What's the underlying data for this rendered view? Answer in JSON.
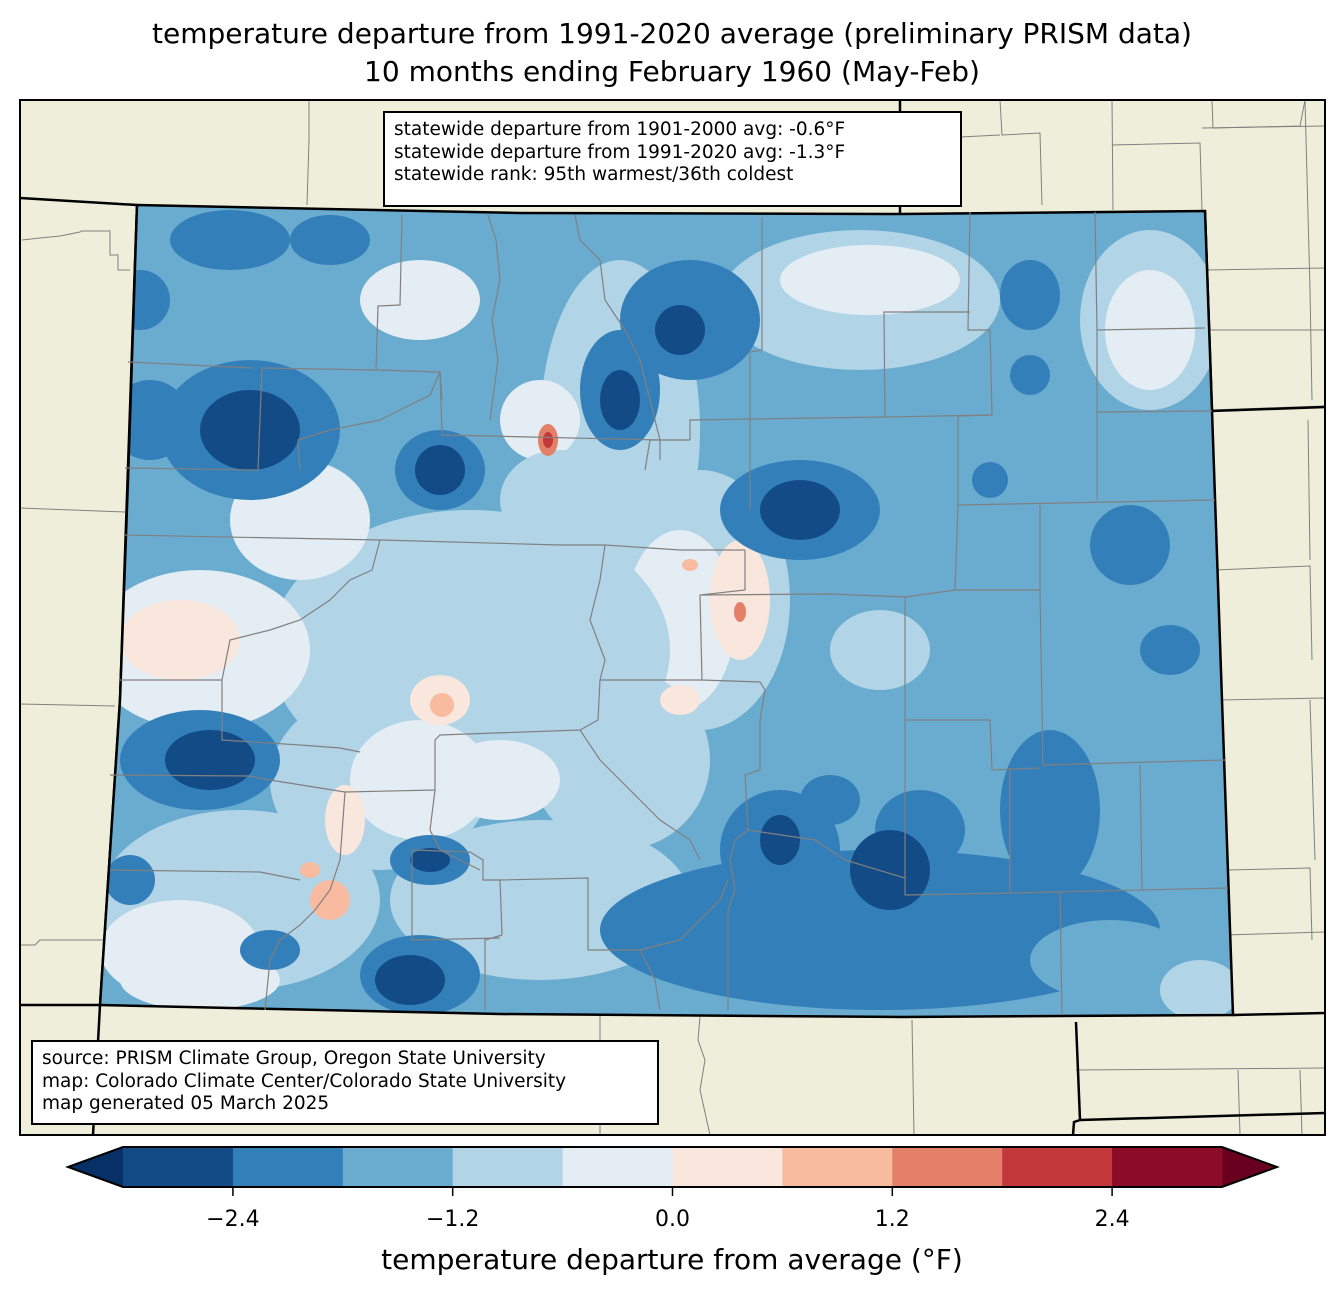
{
  "header": {
    "title_line1": "temperature departure from 1991-2020 average (preliminary PRISM data)",
    "title_line2": "10 months ending February 1960 (May-Feb)"
  },
  "stats_box": {
    "lines": [
      "statewide departure from 1901-2000 avg: -0.6°F",
      "statewide departure from 1991-2020 avg: -1.3°F",
      "statewide rank: 95th warmest/36th coldest"
    ]
  },
  "credits_box": {
    "lines": [
      "source: PRISM Climate Group, Oregon State University",
      "map: Colorado Climate Center/Colorado State University",
      "map generated 05 March 2025"
    ]
  },
  "colors": {
    "land": "#efeedb",
    "state_border": "#000000",
    "county_border": "#808080"
  },
  "colorbar": {
    "label": "temperature departure from average (°F)",
    "levels": [
      -3.0,
      -2.4,
      -1.8,
      -1.2,
      -0.6,
      0.0,
      0.6,
      1.2,
      1.8,
      2.4,
      3.0
    ],
    "colors": [
      "#134b87",
      "#337fb9",
      "#6aacd0",
      "#b2d4e7",
      "#e4edf3",
      "#f9e6dc",
      "#f8bba0",
      "#e48067",
      "#c3383b",
      "#8b0c26"
    ],
    "under_color": "#073066",
    "over_color": "#6a0020",
    "ticks": [
      {
        "value": -2.4,
        "label": "−2.4"
      },
      {
        "value": -1.2,
        "label": "−1.2"
      },
      {
        "value": 0.0,
        "label": "0.0"
      },
      {
        "value": 1.2,
        "label": "1.2"
      },
      {
        "value": 2.4,
        "label": "2.4"
      }
    ]
  }
}
